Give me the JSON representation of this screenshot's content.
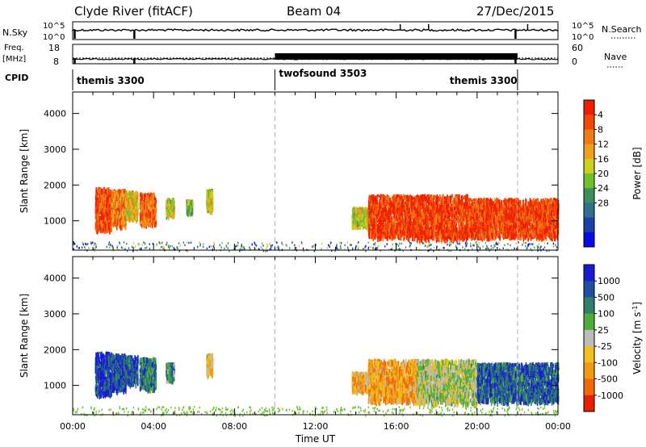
{
  "header": {
    "station": "Clyde River (fitACF)",
    "beam": "Beam 04",
    "date": "27/Dec/2015"
  },
  "nsky_panel": {
    "label": "N.Sky",
    "right_label": "N.Search",
    "left_ticks": [
      "10^5",
      "10^0"
    ],
    "right_ticks": [
      "10^5",
      "10^0"
    ]
  },
  "freq_panel": {
    "label_line1": "Freq.",
    "label_line2": "[MHz]",
    "left_ticks": [
      "18",
      "8"
    ],
    "right_label": "Nave",
    "right_ticks": [
      "60",
      "0"
    ]
  },
  "cpid": {
    "label": "CPID",
    "segments": [
      {
        "name": "themis 3300",
        "start_h": 0.0,
        "end_h": 10.0
      },
      {
        "name": "twofsound 3503",
        "start_h": 10.0,
        "end_h": 22.0
      },
      {
        "name": "themis 3300",
        "start_h": 22.0,
        "end_h": 24.0
      }
    ]
  },
  "chart_data": [
    {
      "type": "heatmap",
      "quantity": "Power",
      "ylabel": "Slant Range [km]",
      "xlim": [
        0,
        24
      ],
      "ylim": [
        180,
        4600
      ],
      "yticks": [
        1000,
        2000,
        3000,
        4000
      ],
      "colorbar": {
        "label": "Power [dB]",
        "ticks": [
          "4",
          "8",
          "12",
          "16",
          "20",
          "24",
          "28"
        ],
        "colors": [
          "#0a0ae8",
          "#1c3fa8",
          "#2f6f8f",
          "#3c8f5a",
          "#6fbf2e",
          "#c9d21e",
          "#f0a020",
          "#f07a14",
          "#f04a0a",
          "#f01e00"
        ]
      },
      "regions": [
        {
          "t0": 1.1,
          "t1": 1.9,
          "r0": 800,
          "r1": 1950,
          "level": 0.85
        },
        {
          "t0": 1.9,
          "t1": 2.6,
          "r0": 900,
          "r1": 1900,
          "level": 0.75
        },
        {
          "t0": 2.6,
          "t1": 3.2,
          "r0": 1100,
          "r1": 1850,
          "level": 0.6
        },
        {
          "t0": 3.3,
          "t1": 4.1,
          "r0": 950,
          "r1": 1800,
          "level": 0.8
        },
        {
          "t0": 4.6,
          "t1": 5.0,
          "r0": 1200,
          "r1": 1650,
          "level": 0.5
        },
        {
          "t0": 5.6,
          "t1": 5.9,
          "r0": 1300,
          "r1": 1600,
          "level": 0.45
        },
        {
          "t0": 6.6,
          "t1": 6.9,
          "r0": 1350,
          "r1": 1900,
          "level": 0.55
        },
        {
          "t0": 13.8,
          "t1": 14.6,
          "r0": 900,
          "r1": 1400,
          "level": 0.55
        },
        {
          "t0": 14.6,
          "t1": 16.5,
          "r0": 600,
          "r1": 1750,
          "level": 0.9
        },
        {
          "t0": 16.5,
          "t1": 19.5,
          "r0": 550,
          "r1": 1750,
          "level": 0.9
        },
        {
          "t0": 19.5,
          "t1": 24.0,
          "r0": 600,
          "r1": 1650,
          "level": 0.88
        }
      ]
    },
    {
      "type": "heatmap",
      "quantity": "Velocity",
      "xlabel": "Time UT",
      "ylabel": "Slant Range [km]",
      "xlim": [
        0,
        24
      ],
      "ylim": [
        180,
        4600
      ],
      "xticks": [
        "00:00",
        "04:00",
        "08:00",
        "12:00",
        "16:00",
        "20:00",
        "00:00"
      ],
      "yticks": [
        1000,
        2000,
        3000,
        4000
      ],
      "colorbar": {
        "label": "Velocity [m s",
        "label_superscript": "-1",
        "label_end": "]",
        "ticks": [
          "1000",
          "500",
          "100",
          "25",
          "-25",
          "-100",
          "-500",
          "-1000"
        ],
        "colors": [
          "#1a1ad2",
          "#1f4fa0",
          "#2f7f6a",
          "#4fae3a",
          "#bcbcbc",
          "#f0c020",
          "#f09a14",
          "#f06a0a",
          "#e81e00"
        ]
      },
      "regions": [
        {
          "t0": 1.1,
          "t1": 1.9,
          "r0": 800,
          "r1": 1950,
          "level": 0.1
        },
        {
          "t0": 1.9,
          "t1": 2.6,
          "r0": 900,
          "r1": 1900,
          "level": 0.15
        },
        {
          "t0": 2.6,
          "t1": 3.2,
          "r0": 1100,
          "r1": 1850,
          "level": 0.18
        },
        {
          "t0": 3.3,
          "t1": 4.1,
          "r0": 950,
          "r1": 1800,
          "level": 0.25
        },
        {
          "t0": 4.6,
          "t1": 5.0,
          "r0": 1200,
          "r1": 1650,
          "level": 0.3
        },
        {
          "t0": 6.6,
          "t1": 6.9,
          "r0": 1350,
          "r1": 1900,
          "level": 0.6
        },
        {
          "t0": 13.8,
          "t1": 14.6,
          "r0": 900,
          "r1": 1400,
          "level": 0.65
        },
        {
          "t0": 14.6,
          "t1": 17.0,
          "r0": 600,
          "r1": 1750,
          "level": 0.7
        },
        {
          "t0": 17.0,
          "t1": 20.0,
          "r0": 550,
          "r1": 1750,
          "level": 0.5
        },
        {
          "t0": 20.0,
          "t1": 24.0,
          "r0": 600,
          "r1": 1650,
          "level": 0.2
        }
      ]
    }
  ]
}
